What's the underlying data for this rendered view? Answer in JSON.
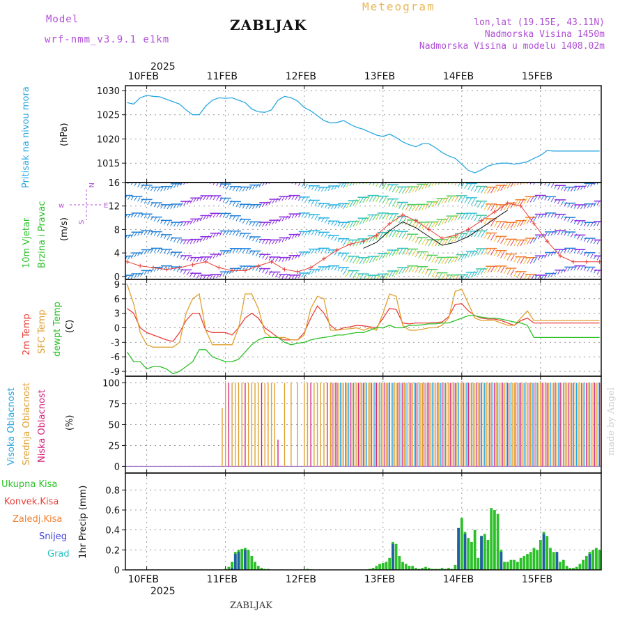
{
  "header": {
    "model_label": "Model",
    "model_name": "wrf-nmm_v3.9.1 e1km",
    "title": "ZABLJAK",
    "product": "Meteogram",
    "coords": "lon,lat (19.15E, 43.11N)",
    "elevation": "Nadmorska Visina 1450m",
    "model_elevation": "Nadmorska Visina u modelu 1408.02m",
    "footer_station": "ZABLJAK",
    "signature": "made by Angel"
  },
  "time_axis": {
    "year": "2025",
    "days": [
      "10FEB",
      "11FEB",
      "12FEB",
      "13FEB",
      "14FEB",
      "15FEB"
    ],
    "hours_range": [
      -6.5,
      138.5
    ]
  },
  "colors": {
    "pressure": "#2aa7e0",
    "t2m": "#e8403a",
    "sfc": "#e0a030",
    "dew": "#2cc028",
    "high_cloud": "#2aa7e0",
    "mid_cloud": "#e0a030",
    "low_cloud": "#d6247a",
    "precip_total": "#2cc028",
    "precip_conv": "#e8403a",
    "precip_frz": "#f08030",
    "precip_snow": "#4040e0",
    "precip_grad": "#28c0c0"
  },
  "panels": {
    "pressure": {
      "label1": "Pritisak na nivou mora",
      "unit": "(hPa)"
    },
    "wind": {
      "label1": "10m Vjetar",
      "label2": "Brzina i Pravac",
      "unit": "(m/s)",
      "compass_w": "w",
      "compass_e": "E",
      "compass_n": "N",
      "compass_s": "S"
    },
    "temp": {
      "label1": "2m Temp",
      "label2": "SFC Temp",
      "label3": "dewpt Temp",
      "unit": "(C)"
    },
    "cloud": {
      "label1": "Visoka Oblacnost",
      "label2": "Srednja Oblacnost",
      "label3": "Niska Oblacnost",
      "unit": "(%)"
    },
    "precip": {
      "legend": [
        "Ukupna Kisa",
        "Konvek.Kisa",
        "Zaledj.Kisa",
        "Snijeg",
        "Grad"
      ],
      "unit": "1hr Precip (mm)"
    }
  },
  "chart_data": [
    {
      "type": "line",
      "name": "pressure",
      "ylim": [
        1011,
        1031
      ],
      "yticks": [
        1015,
        1020,
        1025,
        1030
      ],
      "x": [
        -6,
        -4,
        -2,
        0,
        2,
        4,
        6,
        8,
        10,
        12,
        14,
        16,
        18,
        20,
        22,
        24,
        26,
        28,
        30,
        32,
        34,
        36,
        38,
        40,
        42,
        44,
        46,
        48,
        50,
        52,
        54,
        56,
        58,
        60,
        62,
        64,
        66,
        68,
        70,
        72,
        74,
        76,
        78,
        80,
        82,
        84,
        86,
        88,
        90,
        92,
        94,
        96,
        98,
        100,
        102,
        104,
        106,
        108,
        110,
        112,
        114,
        116,
        118,
        120,
        122,
        124,
        126,
        128,
        130,
        132,
        134,
        136,
        138
      ],
      "y": [
        1027.5,
        1027.2,
        1028.5,
        1029,
        1028.8,
        1028.7,
        1028.2,
        1027.7,
        1027.2,
        1026,
        1025,
        1025,
        1026.8,
        1028,
        1028.5,
        1028.4,
        1028.5,
        1028,
        1027.5,
        1026.2,
        1025.6,
        1025.5,
        1026,
        1028,
        1028.8,
        1028.5,
        1027.8,
        1026.5,
        1025.8,
        1024.8,
        1023.8,
        1023.3,
        1023.4,
        1023.8,
        1023,
        1022.4,
        1022,
        1021.4,
        1020.8,
        1020.5,
        1021,
        1020.3,
        1019.4,
        1018.8,
        1018.4,
        1019,
        1019,
        1018.2,
        1017.2,
        1016.5,
        1016,
        1014.8,
        1013.5,
        1013,
        1013.6,
        1014.4,
        1014.8,
        1015,
        1015,
        1014.8,
        1015,
        1015.3,
        1016,
        1016.6,
        1017.6,
        1017.5,
        1017.5,
        1017.5,
        1017.5,
        1017.5,
        1017.5,
        1017.5,
        1017.5
      ]
    },
    {
      "type": "line",
      "name": "wind",
      "ylim": [
        -0.5,
        16
      ],
      "yticks": [
        0,
        4,
        8,
        12,
        16
      ],
      "x": [
        -6,
        -2,
        2,
        6,
        10,
        14,
        18,
        22,
        26,
        30,
        34,
        38,
        42,
        46,
        50,
        54,
        58,
        62,
        66,
        70,
        74,
        78,
        82,
        86,
        90,
        94,
        98,
        102,
        106,
        110,
        114,
        118,
        122,
        126,
        130,
        134,
        138
      ],
      "y": [
        2.5,
        1.8,
        1.5,
        1.2,
        1.5,
        2,
        2.5,
        1.5,
        1,
        1,
        1.8,
        2.5,
        1.2,
        0.8,
        1.5,
        3,
        4.5,
        5.5,
        6,
        7,
        9,
        10.5,
        9.5,
        8,
        6.5,
        7,
        8,
        9.5,
        11,
        12.5,
        12,
        9,
        6,
        3.5,
        2.5,
        2.5,
        2.5
      ]
    },
    {
      "type": "line",
      "name": "temperature",
      "ylim": [
        -10,
        10
      ],
      "yticks": [
        -9,
        -6,
        -3,
        0,
        3,
        6,
        9
      ],
      "x": [
        -6,
        -4,
        -2,
        0,
        2,
        4,
        6,
        8,
        10,
        12,
        14,
        16,
        18,
        20,
        22,
        24,
        26,
        28,
        30,
        32,
        34,
        36,
        38,
        40,
        42,
        44,
        46,
        48,
        50,
        52,
        54,
        56,
        58,
        60,
        62,
        64,
        66,
        68,
        70,
        72,
        74,
        76,
        78,
        80,
        82,
        84,
        86,
        88,
        90,
        92,
        94,
        96,
        98,
        100,
        102,
        104,
        106,
        108,
        110,
        112,
        114,
        116,
        118,
        120,
        122,
        124,
        126,
        128,
        130,
        132,
        134,
        136,
        138
      ],
      "series": [
        {
          "name": "2m Temp",
          "values": [
            4,
            3,
            0,
            -1,
            -1.5,
            -2,
            -2.5,
            -2.8,
            -1,
            1.5,
            3,
            3,
            -0.5,
            -1,
            -1,
            -1,
            -1.5,
            0,
            2,
            3,
            2,
            0,
            -1,
            -2,
            -2.5,
            -2.5,
            -2.5,
            -1,
            2,
            4.5,
            3,
            0.5,
            -0.5,
            0,
            0.2,
            0.5,
            0.4,
            0.2,
            0,
            2,
            4,
            3.8,
            1,
            0.8,
            1,
            1,
            1,
            1.1,
            1.2,
            2.3,
            4.8,
            5,
            3.5,
            2.5,
            2,
            1.8,
            1.8,
            1.5,
            1,
            0.5,
            1.5,
            2,
            1,
            1,
            1,
            1,
            1,
            1,
            1,
            1,
            1,
            1,
            1
          ]
        },
        {
          "name": "SFC Temp",
          "values": [
            9,
            5,
            -1,
            -3.5,
            -4,
            -4,
            -4,
            -4,
            -3,
            3,
            6,
            7,
            -0.5,
            -3.5,
            -3.5,
            -3.5,
            -3.5,
            0,
            7,
            7,
            4,
            -1,
            -2,
            -2,
            -2,
            -2.5,
            -2.5,
            -1.5,
            4,
            6.5,
            6,
            -0.5,
            -0.5,
            -0.3,
            -0.2,
            0,
            -0.5,
            0,
            -0.5,
            3,
            7,
            6.5,
            0.5,
            -0.5,
            -0.5,
            -0.3,
            0,
            0,
            0.5,
            2,
            7.5,
            8,
            5,
            2,
            1.5,
            1.5,
            1.5,
            1,
            0.5,
            0.5,
            2,
            3.5,
            1.5,
            1.5,
            1.5,
            1.5,
            1.5,
            1.5,
            1.5,
            1.5,
            1.5,
            1.5,
            1.5
          ]
        },
        {
          "name": "dewpt Temp",
          "values": [
            -5,
            -7,
            -7,
            -8.5,
            -8,
            -8,
            -8.5,
            -9.5,
            -9,
            -8,
            -7,
            -4.5,
            -4.5,
            -6,
            -6.5,
            -7,
            -7,
            -6.5,
            -5,
            -3.5,
            -2.5,
            -2,
            -2,
            -2,
            -3,
            -3.5,
            -3.2,
            -3,
            -2.5,
            -2.2,
            -2,
            -1.8,
            -1.5,
            -1.5,
            -1.2,
            -1,
            -1,
            -0.5,
            0,
            0,
            0.5,
            0,
            0,
            0.5,
            0.5,
            0.6,
            0.8,
            0.8,
            1,
            1,
            1.5,
            2,
            2.5,
            2.5,
            2.2,
            2,
            2,
            1.8,
            1.5,
            1.2,
            1,
            0.5,
            -2,
            -2,
            -2,
            -2,
            -2,
            -2,
            -2,
            -2,
            -2,
            -2,
            -2
          ]
        }
      ]
    },
    {
      "type": "bar",
      "name": "cloud_cover",
      "ylim": [
        -8,
        108
      ],
      "yticks": [
        0,
        25,
        50,
        75,
        100
      ]
    },
    {
      "type": "bar",
      "name": "precipitation",
      "ylim": [
        0,
        0.97
      ],
      "yticks": [
        0,
        0.2,
        0.4,
        0.6,
        0.8
      ],
      "x": [
        24,
        25,
        26,
        27,
        28,
        29,
        30,
        31,
        32,
        33,
        34,
        35,
        36,
        37,
        47,
        48,
        49,
        50,
        68,
        69,
        70,
        71,
        72,
        73,
        74,
        75,
        76,
        77,
        78,
        79,
        80,
        81,
        82,
        83,
        84,
        85,
        86,
        87,
        88,
        89,
        90,
        91,
        92,
        93,
        94,
        95,
        96,
        97,
        98,
        99,
        100,
        101,
        102,
        103,
        104,
        105,
        106,
        107,
        108,
        109,
        110,
        111,
        112,
        113,
        114,
        115,
        116,
        117,
        118,
        119,
        120,
        121,
        122,
        123,
        124,
        125,
        126,
        127,
        128,
        129,
        130,
        131,
        132,
        133,
        134,
        135,
        136,
        137,
        138
      ],
      "series": [
        {
          "name": "Ukupna Kisa",
          "values": [
            0.01,
            0.03,
            0.08,
            0.18,
            0.2,
            0.21,
            0.22,
            0.2,
            0.14,
            0.08,
            0.04,
            0.02,
            0.01,
            0.01,
            0.005,
            0.005,
            0.01,
            0.005,
            0.01,
            0.02,
            0.04,
            0.06,
            0.07,
            0.08,
            0.12,
            0.28,
            0.26,
            0.14,
            0.08,
            0.06,
            0.04,
            0.04,
            0.02,
            0.01,
            0.02,
            0.03,
            0.02,
            0.01,
            0.01,
            0.01,
            0.02,
            0.01,
            0.02,
            0.01,
            0.05,
            0.3,
            0.52,
            0.38,
            0.32,
            0.28,
            0.4,
            0.12,
            0.34,
            0.36,
            0.3,
            0.62,
            0.6,
            0.56,
            0.2,
            0.08,
            0.08,
            0.1,
            0.1,
            0.08,
            0.12,
            0.14,
            0.16,
            0.18,
            0.22,
            0.2,
            0.3,
            0.38,
            0.34,
            0.22,
            0.18,
            0.12,
            0.08,
            0.1,
            0.04,
            0.02,
            0.02,
            0.03,
            0.06,
            0.1,
            0.14,
            0.18,
            0.2,
            0.22,
            0.2
          ]
        },
        {
          "name": "Snijeg",
          "values": [
            0,
            0,
            0.02,
            0.16,
            0.18,
            0,
            0.2,
            0,
            0,
            0,
            0,
            0,
            0,
            0,
            0,
            0,
            0,
            0,
            0,
            0,
            0,
            0,
            0,
            0,
            0,
            0.26,
            0,
            0,
            0,
            0,
            0,
            0,
            0,
            0,
            0,
            0,
            0,
            0,
            0,
            0,
            0,
            0,
            0,
            0,
            0,
            0.42,
            0,
            0.36,
            0,
            0,
            0,
            0,
            0.34,
            0,
            0,
            0,
            0,
            0,
            0.18,
            0,
            0,
            0,
            0,
            0,
            0,
            0,
            0,
            0,
            0,
            0,
            0,
            0.36,
            0,
            0,
            0,
            0.18,
            0,
            0,
            0,
            0,
            0,
            0,
            0,
            0,
            0,
            0.16,
            0,
            0,
            0
          ]
        }
      ]
    }
  ]
}
